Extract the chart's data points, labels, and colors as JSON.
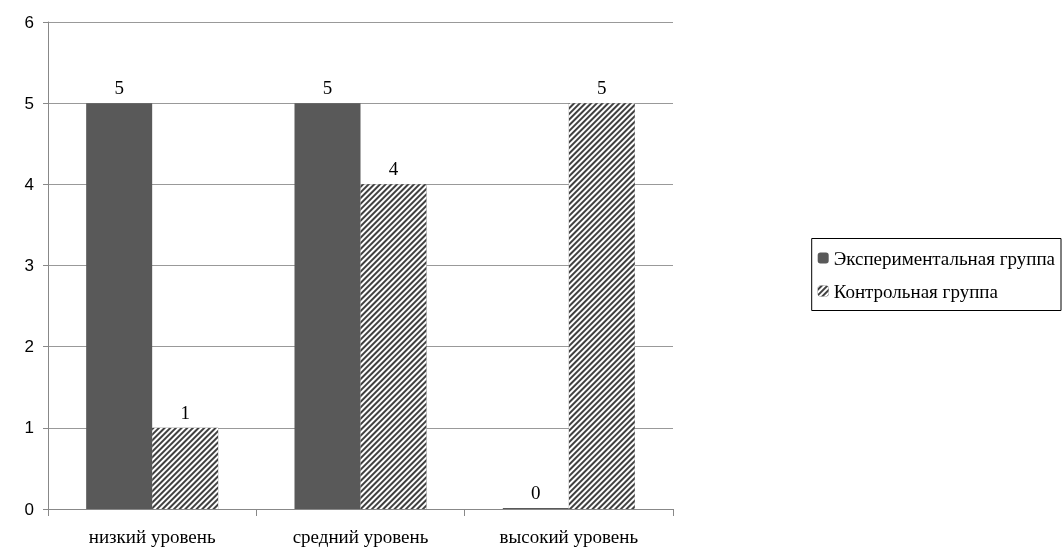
{
  "chart_data": {
    "type": "bar",
    "categories": [
      "низкий уровень",
      "средний уровень",
      "высокий уровень"
    ],
    "series": [
      {
        "name": "Экспериментальная группа",
        "color": "#595959",
        "values": [
          5,
          5,
          0
        ]
      },
      {
        "name": "Контрольная группа",
        "color": "#404040",
        "values": [
          1,
          4,
          5
        ]
      }
    ],
    "ylim": [
      0,
      6
    ],
    "yticks": [
      0,
      1,
      2,
      3,
      4,
      5,
      6
    ],
    "grid": "y",
    "legend": "right",
    "data_labels": true
  }
}
